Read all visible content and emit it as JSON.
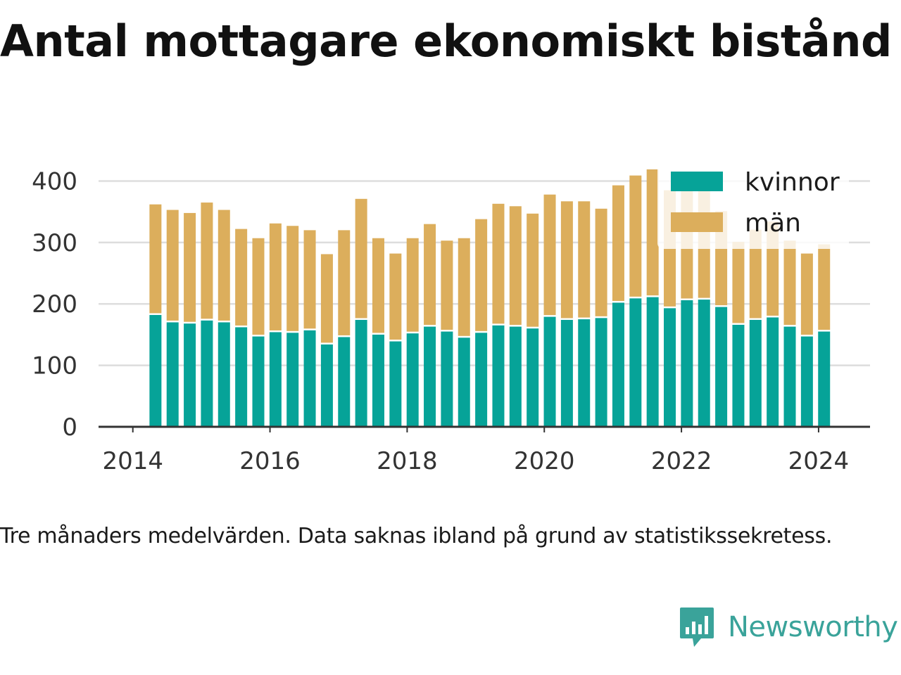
{
  "title": "Antal mottagare ekonomiskt bistånd",
  "caption": "Tre månaders medelvärden. Data saknas ibland på grund av statistikssekretess.",
  "brand": {
    "name": "Newsworthy",
    "color": "#3aa39a"
  },
  "colors": {
    "kvinnor": "#06a398",
    "man": "#dcae5c",
    "grid": "#dddddd",
    "axis": "#333333",
    "tick_text": "#333333"
  },
  "chart_data": {
    "type": "bar",
    "stacked": true,
    "x": [
      2014.33,
      2014.58,
      2014.83,
      2015.08,
      2015.33,
      2015.58,
      2015.83,
      2016.08,
      2016.33,
      2016.58,
      2016.83,
      2017.08,
      2017.33,
      2017.58,
      2017.83,
      2018.08,
      2018.33,
      2018.58,
      2018.83,
      2019.08,
      2019.33,
      2019.58,
      2019.83,
      2020.08,
      2020.33,
      2020.58,
      2020.83,
      2021.08,
      2021.33,
      2021.58,
      2021.83,
      2022.08,
      2022.33,
      2022.58,
      2022.83,
      2023.08,
      2023.33,
      2023.58,
      2023.83,
      2024.08
    ],
    "series": [
      {
        "name": "kvinnor",
        "values": [
          182,
          170,
          168,
          173,
          170,
          162,
          147,
          154,
          153,
          157,
          134,
          146,
          174,
          150,
          139,
          152,
          163,
          155,
          145,
          153,
          165,
          163,
          160,
          179,
          174,
          175,
          177,
          202,
          209,
          211,
          193,
          206,
          207,
          195,
          166,
          174,
          178,
          163,
          147,
          155
        ]
      },
      {
        "name": "män",
        "values": [
          180,
          183,
          180,
          192,
          183,
          160,
          160,
          177,
          174,
          163,
          147,
          174,
          197,
          157,
          143,
          155,
          167,
          148,
          162,
          185,
          198,
          196,
          187,
          199,
          193,
          192,
          178,
          191,
          200,
          208,
          192,
          193,
          190,
          156,
          135,
          147,
          156,
          140,
          135,
          142
        ]
      }
    ],
    "xticks": [
      2014,
      2016,
      2018,
      2020,
      2022,
      2024
    ],
    "xtick_labels": [
      "2014",
      "2016",
      "2018",
      "2020",
      "2022",
      "2024"
    ],
    "yticks": [
      0,
      100,
      200,
      300,
      400
    ],
    "ytick_labels": [
      "0",
      "100",
      "200",
      "300",
      "400"
    ],
    "xlim": [
      2013.5,
      2024.75
    ],
    "ylim": [
      0,
      420
    ],
    "grid": true,
    "legend": {
      "position": "top-right",
      "entries": [
        "kvinnor",
        "män"
      ]
    }
  }
}
